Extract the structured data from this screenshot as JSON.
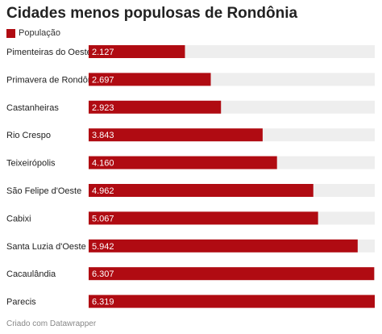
{
  "title": "Cidades menos populosas de Rondônia",
  "footer": "Criado com Datawrapper",
  "colors": {
    "bar": "#b00b12",
    "track": "#eeeeee",
    "label_text": "#222222",
    "value_text": "#ffffff"
  },
  "chart_data": {
    "type": "bar",
    "orientation": "horizontal",
    "title": "Cidades menos populosas de Rondônia",
    "legend": [
      "População"
    ],
    "legend_placement": "top-left",
    "categories": [
      "Pimenteiras do Oeste",
      "Primavera de Rondônia",
      "Castanheiras",
      "Rio Crespo",
      "Teixeirópolis",
      "São Felipe d'Oeste",
      "Cabixi",
      "Santa Luzia d'Oeste",
      "Cacaulândia",
      "Parecis"
    ],
    "value_labels": [
      "2.127",
      "2.697",
      "2.923",
      "3.843",
      "4.160",
      "4.962",
      "5.067",
      "5.942",
      "6.307",
      "6.319"
    ],
    "series": [
      {
        "name": "População",
        "values": [
          2127,
          2697,
          2923,
          3843,
          4160,
          4962,
          5067,
          5942,
          6307,
          6319
        ]
      }
    ],
    "xlim": [
      0,
      6319
    ],
    "grid": false
  }
}
